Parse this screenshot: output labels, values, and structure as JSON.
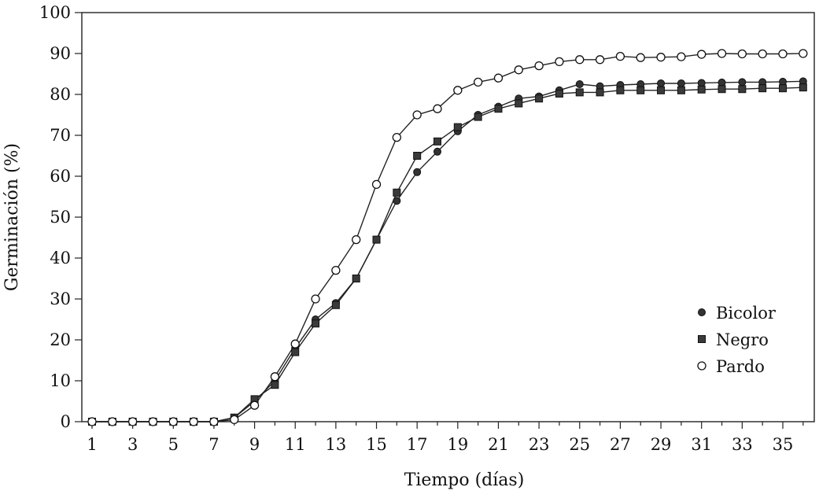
{
  "chart_data": {
    "type": "line",
    "title": "",
    "xlabel": "Tiempo (días)",
    "ylabel": "Germinación (%)",
    "xlim": [
      1,
      36
    ],
    "ylim": [
      0,
      100
    ],
    "xticks": [
      "1",
      "3",
      "5",
      "7",
      "9",
      "11",
      "13",
      "15",
      "17",
      "19",
      "21",
      "23",
      "25",
      "27",
      "29",
      "31",
      "33",
      "35"
    ],
    "yticks": [
      "0",
      "10",
      "20",
      "30",
      "40",
      "50",
      "60",
      "70",
      "80",
      "90",
      "100"
    ],
    "grid": false,
    "legend_position": "right",
    "x": [
      1,
      2,
      3,
      4,
      5,
      6,
      7,
      8,
      9,
      10,
      11,
      12,
      13,
      14,
      15,
      16,
      17,
      18,
      19,
      20,
      21,
      22,
      23,
      24,
      25,
      26,
      27,
      28,
      29,
      30,
      31,
      32,
      33,
      34,
      35,
      36
    ],
    "series": [
      {
        "name": "Bicolor",
        "marker": "filled-circle",
        "values": [
          0,
          0,
          0,
          0,
          0,
          0,
          0,
          1,
          5,
          10,
          18,
          25,
          29,
          35,
          44.5,
          54,
          61,
          66,
          71,
          75,
          77,
          79,
          79.5,
          81,
          82.5,
          82,
          82.3,
          82.5,
          82.7,
          82.7,
          82.8,
          82.9,
          83,
          83,
          83.1,
          83.2
        ]
      },
      {
        "name": "Negro",
        "marker": "filled-square",
        "values": [
          0,
          0,
          0,
          0,
          0,
          0,
          0,
          1,
          5.5,
          9,
          17,
          24,
          28.5,
          35,
          44.5,
          56,
          65,
          68.5,
          72,
          74.5,
          76.5,
          77.8,
          79,
          80.2,
          80.5,
          80.5,
          81,
          81,
          81,
          81,
          81.2,
          81.3,
          81.3,
          81.5,
          81.5,
          81.7
        ]
      },
      {
        "name": "Pardo",
        "marker": "open-circle",
        "values": [
          0,
          0,
          0,
          0,
          0,
          0,
          0,
          0.5,
          4,
          11,
          19,
          30,
          37,
          44.5,
          58,
          69.5,
          75,
          76.5,
          81,
          83,
          84,
          86,
          87,
          88,
          88.5,
          88.5,
          89.3,
          89,
          89.1,
          89.2,
          89.8,
          90,
          89.9,
          89.9,
          89.9,
          90
        ]
      }
    ]
  }
}
